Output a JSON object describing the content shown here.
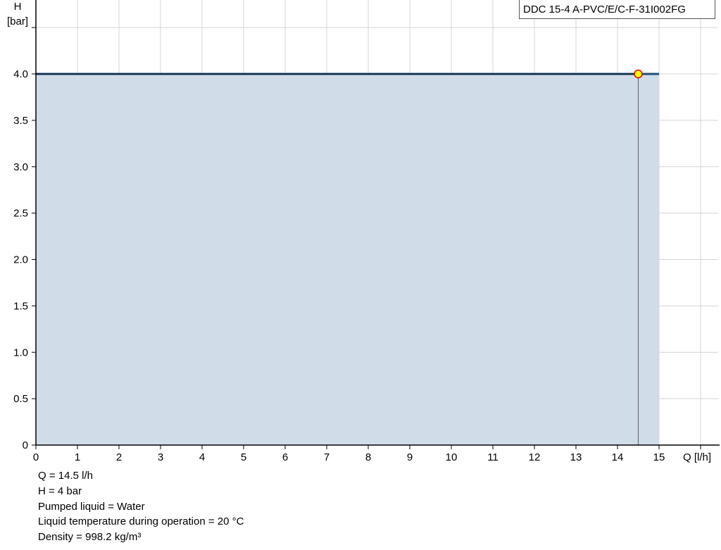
{
  "chart_data": {
    "type": "area",
    "legend": "DDC 15-4 A-PVC/E/C-F-31I002FG",
    "legend_position": "top-right",
    "xlabel": "Q [l/h]",
    "ylabel_line1": "H",
    "ylabel_line2": "[bar]",
    "xlim": [
      0,
      16
    ],
    "ylim": [
      0,
      4.5
    ],
    "grid": true,
    "x_ticks": [
      "0",
      "1",
      "2",
      "3",
      "4",
      "5",
      "6",
      "7",
      "8",
      "9",
      "10",
      "11",
      "12",
      "13",
      "14",
      "15"
    ],
    "y_ticks": [
      "0",
      "0.5",
      "1.0",
      "1.5",
      "2.0",
      "2.5",
      "3.0",
      "3.5",
      "4.0"
    ],
    "series": [
      {
        "x": [
          0,
          15
        ],
        "y": [
          4.0,
          4.0
        ],
        "color": "#1f4e79",
        "fill": "#d0dce8"
      }
    ],
    "operating_point": {
      "q": 14.5,
      "h": 4.0,
      "color": "#ffff00",
      "edge": "#e00000"
    }
  },
  "info": {
    "q": "Q = 14.5 l/h",
    "h": "H = 4 bar",
    "liquid": "Pumped liquid = Water",
    "temperature": "Liquid temperature during operation = 20 °C",
    "density": "Density = 998.2 kg/m³"
  }
}
